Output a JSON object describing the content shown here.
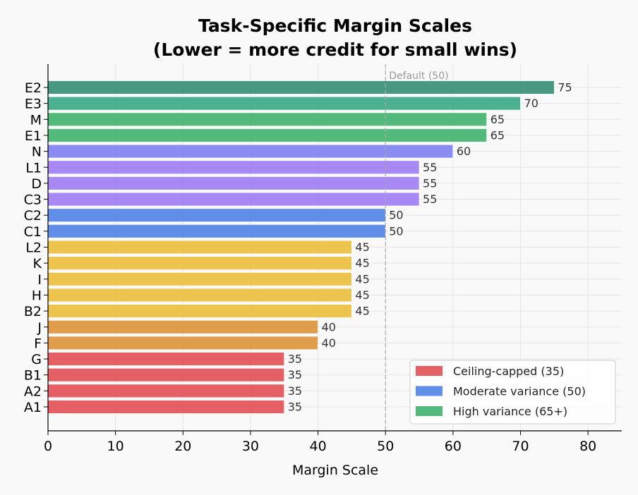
{
  "chart_data": {
    "type": "bar",
    "orientation": "horizontal",
    "title": "Task-Specific Margin Scales",
    "subtitle": "(Lower = more credit for small wins)",
    "xlabel": "Margin Scale",
    "ylabel": "",
    "xlim": [
      0,
      85
    ],
    "xticks": [
      0,
      10,
      20,
      30,
      40,
      50,
      60,
      70,
      80
    ],
    "grid": true,
    "legend_position": "lower-right",
    "reference_line": {
      "value": 50,
      "label": "Default (50)"
    },
    "bars": [
      {
        "label": "E2",
        "value": 75,
        "color": "#2e8b6e"
      },
      {
        "label": "E3",
        "value": 70,
        "color": "#33a67e"
      },
      {
        "label": "M",
        "value": 65,
        "color": "#3cb06a"
      },
      {
        "label": "E1",
        "value": 65,
        "color": "#3cb06a"
      },
      {
        "label": "N",
        "value": 60,
        "color": "#7b7cf0"
      },
      {
        "label": "L1",
        "value": 55,
        "color": "#9b77f2"
      },
      {
        "label": "D",
        "value": 55,
        "color": "#9b77f2"
      },
      {
        "label": "C3",
        "value": 55,
        "color": "#9b77f2"
      },
      {
        "label": "C2",
        "value": 50,
        "color": "#4a7ee6"
      },
      {
        "label": "C1",
        "value": 50,
        "color": "#4a7ee6"
      },
      {
        "label": "L2",
        "value": 45,
        "color": "#ebbd35"
      },
      {
        "label": "K",
        "value": 45,
        "color": "#ebbd35"
      },
      {
        "label": "I",
        "value": 45,
        "color": "#ebbd35"
      },
      {
        "label": "H",
        "value": 45,
        "color": "#ebbd35"
      },
      {
        "label": "B2",
        "value": 45,
        "color": "#ebbd35"
      },
      {
        "label": "J",
        "value": 40,
        "color": "#dc8f33"
      },
      {
        "label": "F",
        "value": 40,
        "color": "#dc8f33"
      },
      {
        "label": "G",
        "value": 35,
        "color": "#e04a4e"
      },
      {
        "label": "B1",
        "value": 35,
        "color": "#e04a4e"
      },
      {
        "label": "A2",
        "value": 35,
        "color": "#e04a4e"
      },
      {
        "label": "A1",
        "value": 35,
        "color": "#e04a4e"
      }
    ],
    "legend": [
      {
        "label": "Ceiling-capped (35)",
        "color": "#e04a4e"
      },
      {
        "label": "Moderate variance (50)",
        "color": "#4a7ee6"
      },
      {
        "label": "High variance (65+)",
        "color": "#3cb06a"
      }
    ]
  }
}
